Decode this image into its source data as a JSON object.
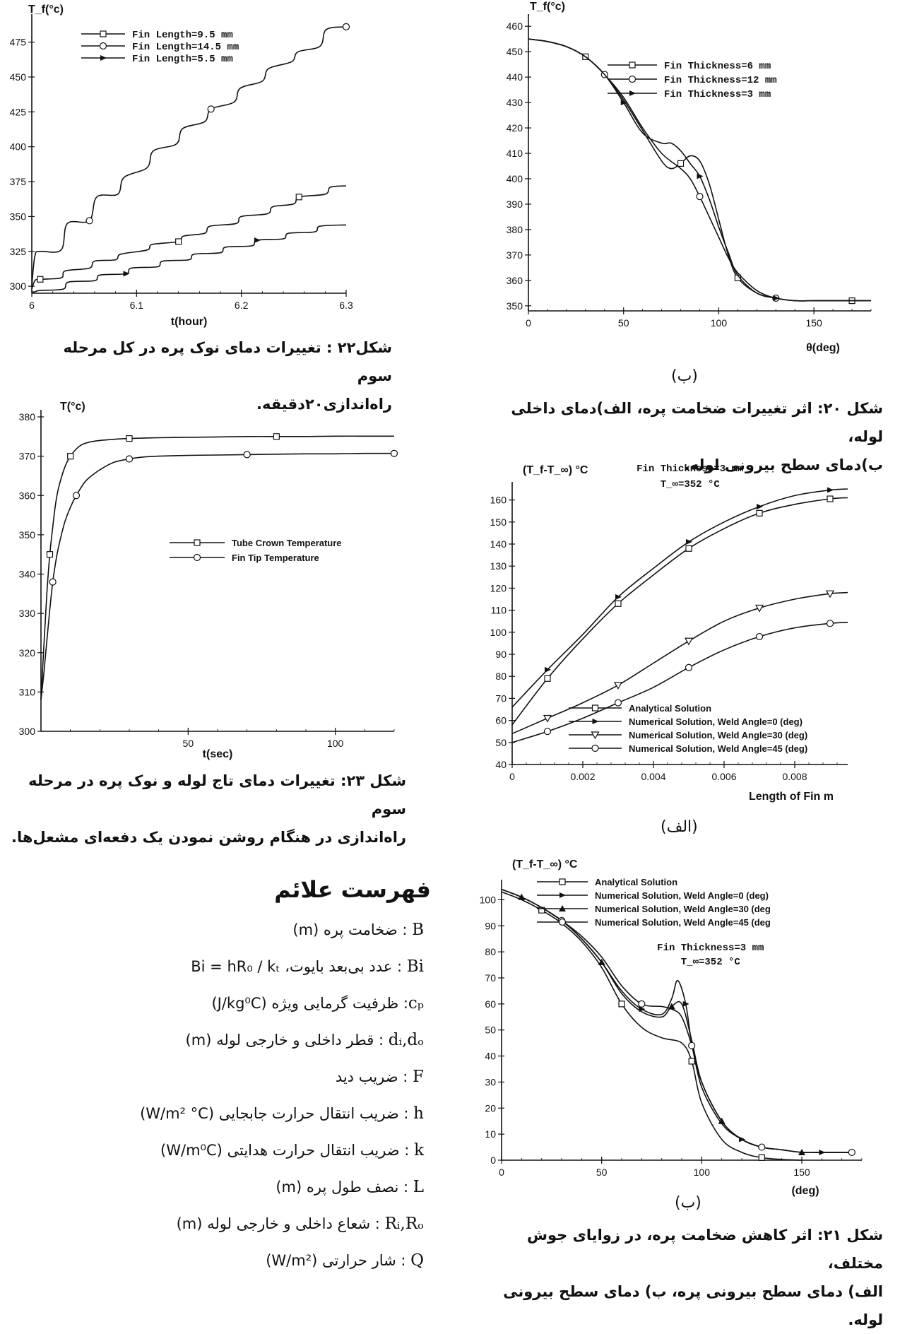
{
  "charts": [
    {
      "id": "fig22",
      "chart_data": {
        "type": "line",
        "ylabel": "T_f(°c)",
        "xlabel": "t(hour)",
        "xlim": [
          6,
          6.3
        ],
        "ylim": [
          295,
          490
        ],
        "xticks": [
          6,
          6.1,
          6.2,
          6.3
        ],
        "xtick_labels": [
          "6",
          "6.1",
          "6.2",
          "6.3"
        ],
        "yticks": [
          300,
          325,
          350,
          375,
          400,
          425,
          450,
          475
        ],
        "legend_position": "top-left",
        "series": [
          {
            "name": "Fin Length=9.5 mm",
            "marker": "square",
            "x": [
              6.0,
              6.003,
              6.008,
              6.028,
              6.032,
              6.055,
              6.06,
              6.08,
              6.085,
              6.11,
              6.115,
              6.14,
              6.145,
              6.165,
              6.17,
              6.195,
              6.2,
              6.225,
              6.23,
              6.25,
              6.255,
              6.28,
              6.285,
              6.3
            ],
            "y": [
              298,
              304,
              305,
              306,
              311,
              313,
              318,
              319,
              323,
              326,
              330,
              332,
              336,
              338,
              343,
              345,
              350,
              352,
              357,
              359,
              364,
              366,
              371,
              372
            ]
          },
          {
            "name": "Fin Length=14.5 mm",
            "marker": "circle",
            "x": [
              6.0,
              6.003,
              6.008,
              6.028,
              6.034,
              6.055,
              6.062,
              6.082,
              6.088,
              6.11,
              6.116,
              6.138,
              6.144,
              6.165,
              6.171,
              6.193,
              6.199,
              6.22,
              6.226,
              6.248,
              6.254,
              6.275,
              6.281,
              6.3
            ],
            "y": [
              300,
              322,
              325,
              326,
              345,
              347,
              364,
              366,
              378,
              385,
              397,
              402,
              413,
              418,
              427,
              432,
              442,
              447,
              456,
              461,
              468,
              472,
              484,
              486
            ]
          },
          {
            "name": "Fin Length=5.5 mm",
            "marker": "triangle-right",
            "x": [
              6.0,
              6.003,
              6.008,
              6.03,
              6.035,
              6.06,
              6.065,
              6.09,
              6.095,
              6.12,
              6.125,
              6.15,
              6.155,
              6.18,
              6.185,
              6.21,
              6.215,
              6.24,
              6.245,
              6.27,
              6.275,
              6.3
            ],
            "y": [
              296,
              296,
              297,
              298,
              303,
              304,
              308,
              309,
              313,
              314,
              318,
              319,
              323,
              324,
              328,
              329,
              333,
              334,
              338,
              339,
              343,
              344
            ]
          }
        ]
      }
    },
    {
      "id": "fig20b",
      "chart_data": {
        "type": "line",
        "ylabel": "T_f(°c)",
        "xlabel": "θ(deg)",
        "xlim": [
          0,
          180
        ],
        "ylim": [
          348,
          462
        ],
        "xticks": [
          0,
          50,
          100,
          150
        ],
        "yticks": [
          350,
          360,
          370,
          380,
          390,
          400,
          410,
          420,
          430,
          440,
          450,
          460
        ],
        "legend_position": "top-right",
        "series": [
          {
            "name": "Fin Thickness=6 mm",
            "marker": "square",
            "x": [
              0,
              10,
              20,
              30,
              40,
              50,
              60,
              70,
              75,
              80,
              85,
              90,
              95,
              100,
              105,
              110,
              120,
              130,
              140,
              150,
              160,
              170,
              180
            ],
            "y": [
              455,
              454,
              452,
              448,
              441,
              431,
              419,
              407,
              404,
              406,
              409,
              407,
              398,
              384,
              370,
              361,
              355,
              353,
              352,
              352,
              352,
              352,
              352
            ]
          },
          {
            "name": "Fin Thickness=12 mm",
            "marker": "circle",
            "x": [
              0,
              10,
              20,
              30,
              40,
              50,
              60,
              70,
              80,
              85,
              90,
              95,
              100,
              105,
              110,
              120,
              130,
              140,
              150,
              160,
              170,
              180
            ],
            "y": [
              455,
              454,
              452,
              448,
              441,
              432,
              420,
              410,
              404,
              400,
              393,
              385,
              377,
              369,
              363,
              356,
              353,
              352,
              352,
              352,
              352,
              352
            ]
          },
          {
            "name": "Fin Thickness=3 mm",
            "marker": "triangle-right",
            "x": [
              0,
              10,
              20,
              30,
              40,
              50,
              60,
              70,
              75,
              80,
              85,
              90,
              95,
              100,
              105,
              110,
              120,
              130,
              140,
              150,
              160,
              170,
              180
            ],
            "y": [
              455,
              454,
              452,
              448,
              441,
              430,
              418,
              414,
              414,
              411,
              406,
              401,
              392,
              381,
              371,
              362,
              355,
              353,
              352,
              352,
              352,
              352,
              352
            ]
          }
        ]
      },
      "sublabel": "(ب)"
    },
    {
      "id": "fig23",
      "chart_data": {
        "type": "line",
        "ylabel": "T(°c)",
        "xlabel": "t(sec)",
        "xlim": [
          0,
          120
        ],
        "ylim": [
          300,
          380
        ],
        "xticks": [
          50,
          100
        ],
        "yticks": [
          300,
          310,
          320,
          330,
          340,
          350,
          360,
          370,
          380
        ],
        "legend_position": "center-right",
        "series": [
          {
            "name": "Tube Crown Temperature",
            "marker": "square",
            "x": [
              0,
              1,
              2,
              3,
              4,
              5,
              6,
              8,
              10,
              13,
              16,
              20,
              25,
              30,
              40,
              50,
              60,
              70,
              80,
              90,
              100,
              110,
              120
            ],
            "y": [
              308,
              322,
              335,
              345,
              352,
              358,
              362,
              367,
              370,
              372.5,
              373.5,
              374,
              374.3,
              374.5,
              374.7,
              374.8,
              374.9,
              375,
              375,
              375,
              375.1,
              375.1,
              375.1
            ]
          },
          {
            "name": "Fin Tip Temperature",
            "marker": "circle",
            "x": [
              0,
              1,
              2,
              3,
              4,
              5,
              6,
              8,
              10,
              12,
              15,
              18,
              21,
              25,
              30,
              35,
              40,
              50,
              60,
              70,
              80,
              90,
              100,
              110,
              120
            ],
            "y": [
              308,
              315,
              323,
              331,
              338,
              343,
              347,
              353,
              357,
              360,
              363.5,
              365.5,
              367,
              368.5,
              369.3,
              369.8,
              370,
              370.2,
              370.3,
              370.4,
              370.5,
              370.6,
              370.6,
              370.7,
              370.7
            ]
          }
        ]
      }
    },
    {
      "id": "fig21a",
      "chart_data": {
        "type": "line",
        "ylabel": "(T_f-T_∞) °C",
        "xlabel": "Length of Fin m",
        "annotations": [
          "Fin Thickness=3 mm",
          "T_∞=352 °C"
        ],
        "xlim": [
          0,
          0.0095
        ],
        "ylim": [
          40,
          165
        ],
        "xticks": [
          0,
          0.002,
          0.004,
          0.006,
          0.008
        ],
        "xtick_labels": [
          "0",
          "0.002",
          "0.004",
          "0.006",
          "0.008"
        ],
        "yticks": [
          40,
          50,
          60,
          70,
          80,
          90,
          100,
          110,
          120,
          130,
          140,
          150,
          160
        ],
        "legend_position": "bottom-right",
        "series": [
          {
            "name": "Analytical Solution",
            "marker": "square",
            "x": [
              0,
              0.001,
              0.002,
              0.003,
              0.004,
              0.005,
              0.006,
              0.007,
              0.008,
              0.009,
              0.0095
            ],
            "y": [
              58,
              79,
              97,
              113,
              126,
              138,
              147,
              154,
              158,
              160.5,
              161
            ]
          },
          {
            "name": "Numerical Solution, Weld Angle=0 (deg)",
            "marker": "triangle-right",
            "x": [
              0,
              0.001,
              0.002,
              0.003,
              0.004,
              0.005,
              0.006,
              0.007,
              0.008,
              0.009,
              0.0095
            ],
            "y": [
              66,
              83,
              99,
              116,
              129,
              141,
              150,
              157,
              162,
              164.5,
              165
            ]
          },
          {
            "name": "Numerical Solution, Weld Angle=30 (deg)",
            "marker": "triangle-down",
            "x": [
              0,
              0.001,
              0.002,
              0.003,
              0.004,
              0.005,
              0.006,
              0.007,
              0.008,
              0.009,
              0.0095
            ],
            "y": [
              54,
              61,
              68,
              76,
              86,
              96,
              105,
              111,
              115,
              117.5,
              118
            ]
          },
          {
            "name": "Numerical Solution, Weld Angle=45 (deg)",
            "marker": "circle",
            "x": [
              0,
              0.001,
              0.002,
              0.003,
              0.004,
              0.005,
              0.006,
              0.007,
              0.008,
              0.009,
              0.0095
            ],
            "y": [
              50,
              55,
              61,
              68,
              75,
              84,
              92,
              98,
              102,
              104,
              104.5
            ]
          }
        ]
      },
      "sublabel": "(الف)"
    },
    {
      "id": "fig21b",
      "chart_data": {
        "type": "line",
        "ylabel": "(T_f-T_∞) °C",
        "xlabel": "(deg)",
        "annotations": [
          "Fin Thickness=3 mm",
          "T_∞=352 °C"
        ],
        "xlim": [
          0,
          180
        ],
        "ylim": [
          0,
          105
        ],
        "xticks": [
          0,
          50,
          100,
          150
        ],
        "yticks": [
          0,
          10,
          20,
          30,
          40,
          50,
          60,
          70,
          80,
          90,
          100
        ],
        "legend_position": "top-right",
        "series": [
          {
            "name": "Analytical Solution",
            "marker": "square",
            "x": [
              0,
              10,
              20,
              30,
              40,
              50,
              60,
              70,
              80,
              90,
              95,
              100,
              110,
              120,
              130,
              140,
              150
            ],
            "y": [
              103,
              100,
              96,
              91,
              84,
              74,
              60,
              51,
              47,
              45,
              38,
              22,
              8,
              3,
              1,
              0.3,
              0
            ]
          },
          {
            "name": "Numerical Solution, Weld Angle=0 (deg)",
            "marker": "triangle-right",
            "x": [
              0,
              10,
              20,
              30,
              40,
              50,
              60,
              70,
              80,
              85,
              88,
              92,
              95,
              100,
              110,
              120,
              130,
              140,
              150,
              160,
              175
            ],
            "y": [
              104,
              101,
              97,
              92,
              85,
              76,
              65,
              58,
              56,
              62,
              69,
              60,
              45,
              30,
              15,
              8,
              5,
              4,
              3,
              3,
              3
            ]
          },
          {
            "name": "Numerical Solution, Weld Angle=30 (deg",
            "marker": "triangle-up",
            "x": [
              0,
              10,
              20,
              30,
              40,
              50,
              60,
              70,
              80,
              85,
              90,
              95,
              100,
              110,
              120,
              130,
              140,
              150,
              160,
              175
            ],
            "y": [
              104,
              101,
              97,
              92,
              85,
              76,
              64,
              57,
              55,
              59,
              60,
              46,
              30,
              15,
              8,
              5,
              4,
              3,
              3,
              3
            ]
          },
          {
            "name": "Numerical Solution, Weld Angle=45 (deg",
            "marker": "circle",
            "x": [
              0,
              10,
              20,
              30,
              40,
              50,
              60,
              70,
              80,
              85,
              90,
              95,
              100,
              110,
              120,
              130,
              140,
              150,
              160,
              175
            ],
            "y": [
              104,
              101,
              97,
              92,
              86,
              78,
              67,
              60,
              59,
              58,
              55,
              44,
              28,
              14,
              8,
              5,
              4,
              3,
              3,
              3
            ]
          }
        ]
      },
      "sublabel": "(ب)"
    }
  ],
  "captions": {
    "fig22": [
      "شکل۲۲ : تغییرات دمای نوک پره در کل مرحله سوم",
      "راه‌اندازی۲۰دقیقه."
    ],
    "fig20": [
      "شکل ۲۰: اثر تغییرات ضخامت پره، الف)دمای داخلی لوله،",
      "ب)دمای سطح بیرونی لوله."
    ],
    "fig23": [
      "شکل ۲۳: تغییرات دمای تاج لوله و نوک پره در مرحله سوم",
      "راه‌اندازی در هنگام روشن نمودن یک دفعه‌ای مشعل‌ها."
    ],
    "fig21": [
      "شکل ۲۱: اثر کاهش ضخامت پره، در زوایای جوش مختلف،",
      "الف) دمای سطح بیرونی پره، ب) دمای سطح بیرونی لوله."
    ]
  },
  "symbols": {
    "title": "فهرست علائم",
    "items": [
      {
        "key": "B",
        "desc": " : ضخامت پره (m)"
      },
      {
        "key": "Bi",
        "desc": " : عدد بی‌بعد بایوت، Bi = hR₀ / kₜ"
      },
      {
        "key": "cₚ",
        "desc": ": ظرفیت گرمایی ویژه (J/kg⁰C)"
      },
      {
        "key": "dᵢ,dₒ",
        "desc": " : قطر داخلی و خارجی لوله (m)"
      },
      {
        "key": "F",
        "desc": " : ضریب دید"
      },
      {
        "key": "h",
        "desc": " : ضریب انتقال حرارت جابجایی (W/m² °C)"
      },
      {
        "key": "k",
        "desc": " : ضریب انتقال حرارت هدایتی (W/m⁰C)"
      },
      {
        "key": "L",
        "desc": " : نصف طول پره (m)"
      },
      {
        "key": "Rᵢ,Rₒ",
        "desc": " : شعاع داخلی و خارجی لوله (m)"
      },
      {
        "key": "Q",
        "desc": " : شار حرارتی (W/m²)"
      }
    ]
  }
}
